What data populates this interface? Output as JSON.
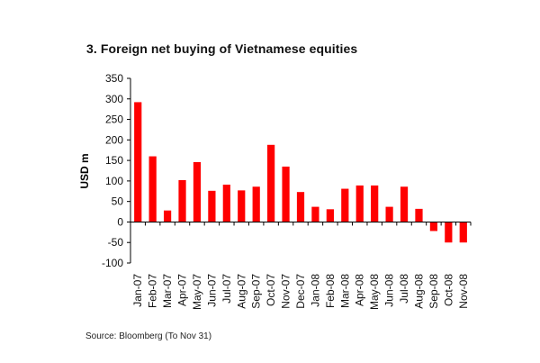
{
  "chart_data": {
    "type": "bar",
    "title": "3. Foreign net buying of Vietnamese equities",
    "xlabel": "",
    "ylabel": "USD m",
    "ylim": [
      -100,
      350
    ],
    "yticks": [
      -100,
      -50,
      0,
      50,
      100,
      150,
      200,
      250,
      300,
      350
    ],
    "ytick_labels": [
      "-100",
      "-50",
      "0",
      "50",
      "100",
      "150",
      "200",
      "250",
      "300",
      "350"
    ],
    "grid": false,
    "bar_color": "#ff0000",
    "categories": [
      "Jan-07",
      "Feb-07",
      "Mar-07",
      "Apr-07",
      "May-07",
      "Jun-07",
      "Jul-07",
      "Aug-07",
      "Sep-07",
      "Oct-07",
      "Nov-07",
      "Dec-07",
      "Jan-08",
      "Feb-08",
      "Mar-08",
      "Apr-08",
      "May-08",
      "Jun-08",
      "Jul-08",
      "Aug-08",
      "Sep-08",
      "Oct-08",
      "Nov-08"
    ],
    "values": [
      292,
      160,
      28,
      102,
      146,
      76,
      91,
      77,
      86,
      188,
      135,
      73,
      37,
      31,
      81,
      89,
      89,
      37,
      86,
      32,
      -22,
      -50,
      -50
    ],
    "source": "Source: Bloomberg (To Nov 31)"
  }
}
